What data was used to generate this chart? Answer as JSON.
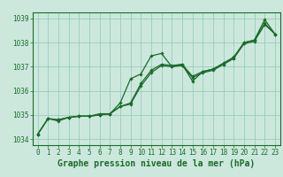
{
  "title": "Graphe pression niveau de la mer (hPa)",
  "bg_color": "#cce8dc",
  "grid_color": "#99ccbb",
  "line_color": "#1a6b2a",
  "x_values": [
    0,
    1,
    2,
    3,
    4,
    5,
    6,
    7,
    8,
    9,
    10,
    11,
    12,
    13,
    14,
    15,
    16,
    17,
    18,
    19,
    20,
    21,
    22,
    23
  ],
  "line_smooth1": [
    1034.2,
    1034.85,
    1034.8,
    1034.9,
    1034.95,
    1034.95,
    1035.0,
    1035.05,
    1035.35,
    1035.45,
    1036.2,
    1036.75,
    1037.05,
    1037.0,
    1037.05,
    1036.55,
    1036.75,
    1036.85,
    1037.1,
    1037.35,
    1037.95,
    1038.05,
    1038.75,
    1038.35
  ],
  "line_smooth2": [
    1034.2,
    1034.85,
    1034.8,
    1034.9,
    1034.95,
    1034.95,
    1035.0,
    1035.05,
    1035.35,
    1035.5,
    1036.3,
    1036.85,
    1037.1,
    1037.05,
    1037.1,
    1036.6,
    1036.8,
    1036.9,
    1037.15,
    1037.4,
    1038.0,
    1038.1,
    1038.8,
    1038.35
  ],
  "line_jagged": [
    1034.2,
    1034.85,
    1034.75,
    1034.9,
    1034.95,
    1034.95,
    1035.05,
    1035.05,
    1035.5,
    1036.5,
    1036.7,
    1037.45,
    1037.55,
    1037.0,
    1037.1,
    1036.4,
    1036.8,
    1036.9,
    1037.1,
    1037.35,
    1038.0,
    1038.1,
    1038.95,
    1038.35
  ],
  "ylim": [
    1033.75,
    1039.25
  ],
  "yticks": [
    1034,
    1035,
    1036,
    1037,
    1038,
    1039
  ],
  "xlim": [
    -0.5,
    23.5
  ],
  "xticks": [
    0,
    1,
    2,
    3,
    4,
    5,
    6,
    7,
    8,
    9,
    10,
    11,
    12,
    13,
    14,
    15,
    16,
    17,
    18,
    19,
    20,
    21,
    22,
    23
  ],
  "tick_fontsize": 5.5,
  "label_fontsize": 7.0,
  "fig_width": 3.2,
  "fig_height": 2.0,
  "dpi": 100
}
